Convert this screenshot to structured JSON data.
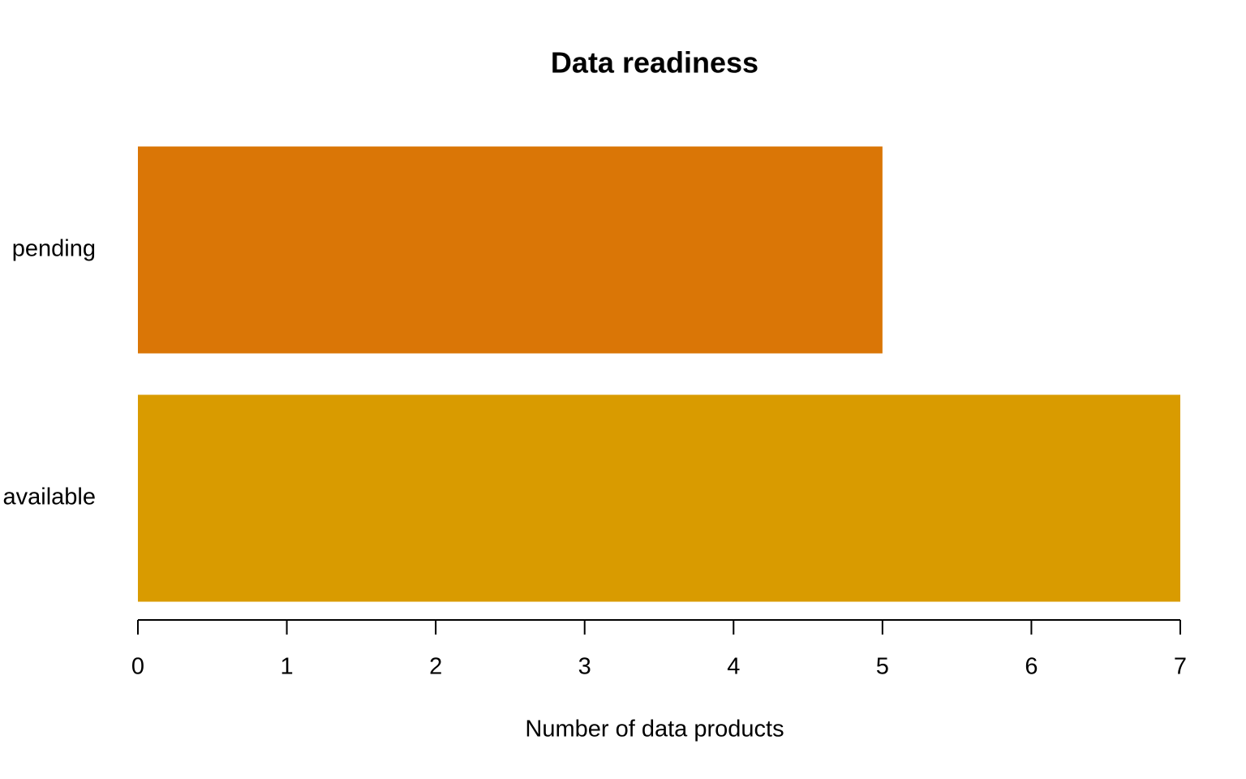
{
  "chart_data": {
    "type": "bar",
    "orientation": "horizontal",
    "title": "Data readiness",
    "x_label": "Number of data products",
    "categories": [
      "pending",
      "available"
    ],
    "values": [
      5,
      7
    ],
    "colors": [
      "#da7606",
      "#d99b00"
    ],
    "xlim": [
      0,
      7
    ],
    "xticks": [
      0,
      1,
      2,
      3,
      4,
      5,
      6,
      7
    ]
  }
}
